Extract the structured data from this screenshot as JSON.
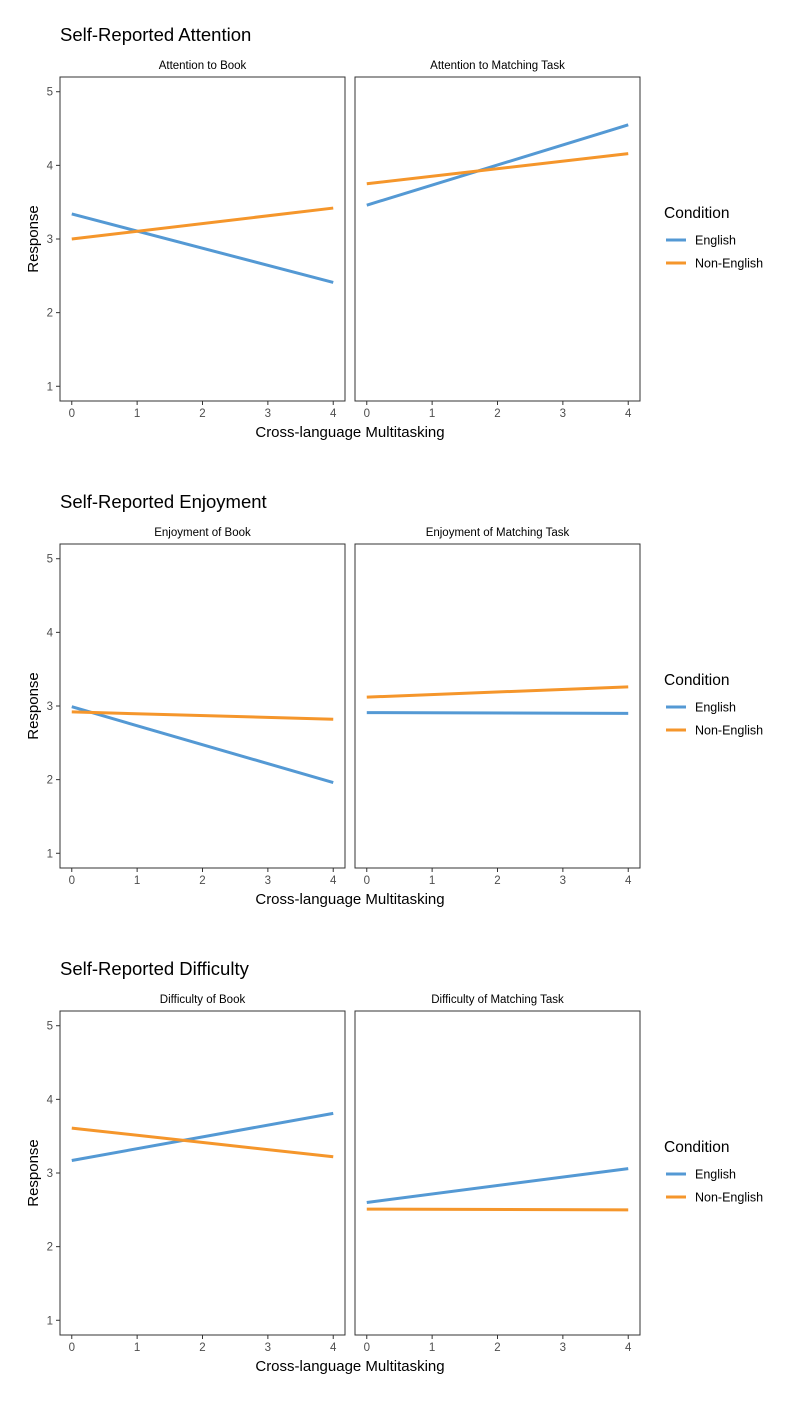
{
  "colors": {
    "english": "#5499D4",
    "non_english": "#F5962B",
    "frame": "#333333",
    "text": "#000000",
    "tick_text": "#4d4d4d"
  },
  "legend": {
    "title": "Condition",
    "entries": [
      {
        "label": "English",
        "color": "#5499D4"
      },
      {
        "label": "Non-English",
        "color": "#F5962B"
      }
    ],
    "placement": "right"
  },
  "chart_data": [
    {
      "type": "line",
      "title": "Self-Reported Attention",
      "xlabel": "Cross-language Multitasking",
      "ylabel": "Response",
      "xlim": [
        -0.18,
        4.18
      ],
      "ylim": [
        0.8,
        5.2
      ],
      "xticks": [
        0,
        1,
        2,
        3,
        4
      ],
      "yticks": [
        1,
        2,
        3,
        4,
        5
      ],
      "grid": false,
      "panels": [
        {
          "title": "Attention to Book",
          "series": [
            {
              "name": "English",
              "x": [
                0,
                4
              ],
              "y": [
                3.34,
                2.41
              ]
            },
            {
              "name": "Non-English",
              "x": [
                0,
                4
              ],
              "y": [
                3.0,
                3.42
              ]
            }
          ]
        },
        {
          "title": "Attention to Matching Task",
          "series": [
            {
              "name": "English",
              "x": [
                0,
                4
              ],
              "y": [
                3.46,
                4.55
              ]
            },
            {
              "name": "Non-English",
              "x": [
                0,
                4
              ],
              "y": [
                3.75,
                4.16
              ]
            }
          ]
        }
      ]
    },
    {
      "type": "line",
      "title": "Self-Reported Enjoyment",
      "xlabel": "Cross-language Multitasking",
      "ylabel": "Response",
      "xlim": [
        -0.18,
        4.18
      ],
      "ylim": [
        0.8,
        5.2
      ],
      "xticks": [
        0,
        1,
        2,
        3,
        4
      ],
      "yticks": [
        1,
        2,
        3,
        4,
        5
      ],
      "grid": false,
      "panels": [
        {
          "title": "Enjoyment of Book",
          "series": [
            {
              "name": "English",
              "x": [
                0,
                4
              ],
              "y": [
                2.99,
                1.96
              ]
            },
            {
              "name": "Non-English",
              "x": [
                0,
                4
              ],
              "y": [
                2.92,
                2.82
              ]
            }
          ]
        },
        {
          "title": "Enjoyment of Matching Task",
          "series": [
            {
              "name": "English",
              "x": [
                0,
                4
              ],
              "y": [
                2.91,
                2.9
              ]
            },
            {
              "name": "Non-English",
              "x": [
                0,
                4
              ],
              "y": [
                3.12,
                3.26
              ]
            }
          ]
        }
      ]
    },
    {
      "type": "line",
      "title": "Self-Reported Difficulty",
      "xlabel": "Cross-language Multitasking",
      "ylabel": "Response",
      "xlim": [
        -0.18,
        4.18
      ],
      "ylim": [
        0.8,
        5.2
      ],
      "xticks": [
        0,
        1,
        2,
        3,
        4
      ],
      "yticks": [
        1,
        2,
        3,
        4,
        5
      ],
      "grid": false,
      "panels": [
        {
          "title": "Difficulty of Book",
          "series": [
            {
              "name": "English",
              "x": [
                0,
                4
              ],
              "y": [
                3.17,
                3.81
              ]
            },
            {
              "name": "Non-English",
              "x": [
                0,
                4
              ],
              "y": [
                3.61,
                3.22
              ]
            }
          ]
        },
        {
          "title": "Difficulty of Matching Task",
          "series": [
            {
              "name": "English",
              "x": [
                0,
                4
              ],
              "y": [
                2.6,
                3.06
              ]
            },
            {
              "name": "Non-English",
              "x": [
                0,
                4
              ],
              "y": [
                2.51,
                2.5
              ]
            }
          ]
        }
      ]
    }
  ]
}
